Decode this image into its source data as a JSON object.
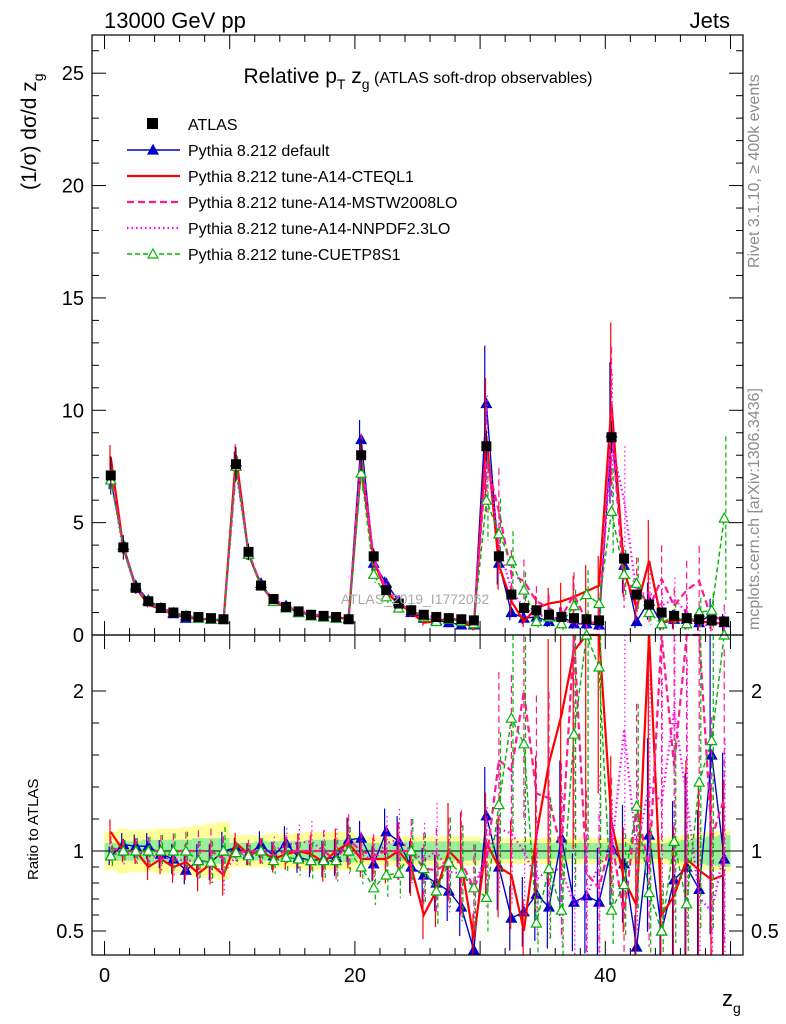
{
  "header": {
    "left": "13000 GeV pp",
    "right": "Jets"
  },
  "side_labels": {
    "rivet": "Rivet 3.1.10, ≥ 400k events",
    "mcplots": "mcplots.cern.ch [arXiv:1306.3436]"
  },
  "watermark": "ATLAS_2019_I1772062",
  "chart_data": {
    "type": "scatter",
    "title_main": "Relative p",
    "title_sub_T": "T",
    "title_z": " z",
    "title_sub_g": "g",
    "title_rest": " (ATLAS soft-drop observables)",
    "ylabel_main": "(1/σ) dσ/d z",
    "ylabel_sub": "g",
    "ratio_ylabel": "Ratio to ATLAS",
    "xlabel": "z",
    "xlabel_sub": "g",
    "xlim": [
      -1,
      51
    ],
    "ylim": [
      0,
      26.7
    ],
    "ratio_ylim": [
      0.35,
      2.35
    ],
    "x_ticks": [
      "0",
      "20",
      "40"
    ],
    "y_ticks": [
      "0",
      "5",
      "10",
      "15",
      "20",
      "25"
    ],
    "ratio_ticks": [
      "0.5",
      "1",
      "2"
    ],
    "x": [
      0.5,
      1.5,
      2.5,
      3.5,
      4.5,
      5.5,
      6.5,
      7.5,
      8.5,
      9.5,
      10.5,
      11.5,
      12.5,
      13.5,
      14.5,
      15.5,
      16.5,
      17.5,
      18.5,
      19.5,
      20.5,
      21.5,
      22.5,
      23.5,
      24.5,
      25.5,
      26.5,
      27.5,
      28.5,
      29.5,
      30.5,
      31.5,
      32.5,
      33.5,
      34.5,
      35.5,
      36.5,
      37.5,
      38.5,
      39.5,
      40.5,
      41.5,
      42.5,
      43.5,
      44.5,
      45.5,
      46.5,
      47.5,
      48.5,
      49.5
    ],
    "atlas": {
      "name": "ATLAS",
      "color": "#000000",
      "values": [
        7.1,
        3.9,
        2.1,
        1.5,
        1.2,
        1.0,
        0.85,
        0.8,
        0.75,
        0.7,
        7.6,
        3.7,
        2.2,
        1.6,
        1.25,
        1.05,
        0.9,
        0.85,
        0.8,
        0.7,
        8.0,
        3.5,
        2.0,
        1.4,
        1.1,
        0.9,
        0.8,
        0.75,
        0.7,
        0.65,
        8.4,
        3.5,
        1.8,
        1.2,
        1.1,
        0.9,
        0.8,
        0.75,
        0.7,
        0.65,
        8.8,
        3.4,
        1.8,
        1.35,
        1.0,
        0.85,
        0.75,
        0.7,
        0.65,
        0.6
      ],
      "band_inner": [
        0.05,
        0.06,
        0.06,
        0.07,
        0.07,
        0.07,
        0.07,
        0.08,
        0.08,
        0.08,
        0.05,
        0.05,
        0.06,
        0.06,
        0.06,
        0.06,
        0.07,
        0.07,
        0.07,
        0.07,
        0.05,
        0.05,
        0.05,
        0.06,
        0.06,
        0.06,
        0.06,
        0.06,
        0.06,
        0.06,
        0.05,
        0.05,
        0.05,
        0.05,
        0.05,
        0.05,
        0.05,
        0.05,
        0.05,
        0.05,
        0.05,
        0.05,
        0.05,
        0.05,
        0.05,
        0.06,
        0.07,
        0.08,
        0.09,
        0.1
      ],
      "band_outer": [
        0.12,
        0.14,
        0.13,
        0.13,
        0.14,
        0.14,
        0.15,
        0.16,
        0.17,
        0.18,
        0.1,
        0.1,
        0.1,
        0.11,
        0.11,
        0.11,
        0.12,
        0.12,
        0.12,
        0.12,
        0.09,
        0.09,
        0.09,
        0.09,
        0.09,
        0.09,
        0.09,
        0.09,
        0.09,
        0.09,
        0.08,
        0.08,
        0.08,
        0.08,
        0.08,
        0.08,
        0.08,
        0.08,
        0.08,
        0.08,
        0.08,
        0.08,
        0.08,
        0.08,
        0.08,
        0.09,
        0.1,
        0.11,
        0.12,
        0.13
      ]
    },
    "series": [
      {
        "name": "Pythia 8.212 default",
        "color": "#0000cc",
        "dash": "",
        "marker": "triangle-filled",
        "values": [
          6.9,
          4.0,
          2.2,
          1.55,
          1.2,
          0.95,
          0.75,
          0.75,
          0.7,
          0.7,
          7.7,
          3.6,
          2.3,
          1.5,
          1.3,
          1.0,
          0.85,
          0.8,
          0.75,
          0.75,
          8.7,
          3.2,
          2.3,
          1.5,
          1.0,
          0.75,
          0.65,
          0.55,
          0.45,
          0.45,
          10.3,
          3.2,
          1.0,
          0.75,
          0.8,
          0.6,
          0.85,
          0.5,
          0.5,
          0.45,
          9.0,
          3.1,
          0.6,
          1.5,
          0.5,
          0.7,
          0.7,
          0.55,
          0.95,
          0.55
        ],
        "ratio": [
          0.97,
          1.04,
          1.03,
          1.03,
          0.98,
          0.95,
          0.88,
          0.94,
          0.93,
          1.0,
          1.02,
          0.98,
          1.04,
          0.97,
          1.05,
          0.96,
          0.94,
          0.95,
          0.96,
          1.07,
          1.08,
          0.92,
          1.12,
          1.06,
          0.9,
          0.85,
          0.8,
          0.75,
          0.65,
          0.38,
          1.22,
          0.9,
          0.58,
          0.62,
          0.73,
          0.65,
          1.08,
          0.68,
          0.72,
          0.68,
          1.02,
          0.92,
          0.4,
          1.1,
          0.5,
          0.82,
          0.9,
          0.76,
          1.6,
          0.95
        ],
        "err": [
          0.06,
          0.07,
          0.07,
          0.08,
          0.09,
          0.1,
          0.1,
          0.11,
          0.12,
          0.12,
          0.06,
          0.07,
          0.08,
          0.09,
          0.1,
          0.1,
          0.11,
          0.12,
          0.12,
          0.13,
          0.1,
          0.12,
          0.13,
          0.15,
          0.18,
          0.2,
          0.22,
          0.25,
          0.28,
          0.3,
          0.25,
          0.3,
          0.35,
          0.35,
          0.4,
          0.4,
          0.45,
          0.45,
          0.5,
          0.5,
          0.35,
          0.4,
          0.5,
          0.55,
          0.6,
          0.6,
          0.65,
          0.65,
          0.7,
          0.7
        ]
      },
      {
        "name": "Pythia 8.212 tune-A14-CTEQL1",
        "color": "#ff0000",
        "dash": "",
        "marker": "none",
        "values": [
          7.9,
          3.9,
          2.1,
          1.35,
          1.15,
          0.9,
          0.8,
          0.7,
          0.7,
          0.6,
          8.0,
          3.6,
          2.2,
          1.5,
          1.2,
          1.05,
          0.9,
          0.8,
          0.8,
          0.7,
          7.6,
          3.3,
          1.9,
          1.4,
          1.0,
          0.55,
          0.6,
          0.75,
          0.65,
          0.3,
          8.8,
          3.1,
          1.5,
          0.6,
          1.2,
          1.4,
          1.5,
          1.7,
          1.95,
          2.2,
          10.3,
          2.8,
          1.2,
          3.3,
          0.6,
          0.6,
          0.7,
          0.6,
          0.55,
          0.5
        ],
        "ratio": [
          1.12,
          1.0,
          1.0,
          0.9,
          0.95,
          0.9,
          0.93,
          0.86,
          0.92,
          0.85,
          1.05,
          0.98,
          1.0,
          0.95,
          0.98,
          1.0,
          0.98,
          0.93,
          1.0,
          1.05,
          0.95,
          0.95,
          0.95,
          1.0,
          0.9,
          0.6,
          0.75,
          1.0,
          0.92,
          0.45,
          1.05,
          0.9,
          0.85,
          0.5,
          1.1,
          1.55,
          1.85,
          2.25,
          2.8,
          3.4,
          1.18,
          0.82,
          0.66,
          2.45,
          0.6,
          0.72,
          0.95,
          0.88,
          0.82,
          0.85
        ],
        "err": [
          0.07,
          0.07,
          0.08,
          0.09,
          0.1,
          0.11,
          0.12,
          0.13,
          0.14,
          0.15,
          0.06,
          0.07,
          0.08,
          0.09,
          0.1,
          0.11,
          0.12,
          0.13,
          0.14,
          0.15,
          0.12,
          0.14,
          0.16,
          0.18,
          0.2,
          0.25,
          0.3,
          0.3,
          0.35,
          0.35,
          0.3,
          0.35,
          0.4,
          0.4,
          0.45,
          0.5,
          0.55,
          0.55,
          0.6,
          0.6,
          0.35,
          0.4,
          0.5,
          0.55,
          0.6,
          0.6,
          0.65,
          0.65,
          0.7,
          0.7
        ]
      },
      {
        "name": "Pythia 8.212 tune-A14-MSTW2008LO",
        "color": "#ff1a8c",
        "dash": "7,4",
        "marker": "none",
        "values": [
          7.2,
          3.9,
          2.1,
          1.5,
          1.2,
          1.0,
          0.85,
          0.8,
          0.75,
          0.65,
          7.5,
          3.7,
          2.2,
          1.55,
          1.25,
          1.05,
          0.9,
          0.85,
          0.75,
          0.75,
          8.0,
          3.4,
          2.0,
          1.4,
          1.1,
          0.8,
          0.7,
          0.7,
          0.65,
          0.5,
          7.8,
          5.5,
          2.7,
          2.4,
          1.5,
          1.2,
          0.8,
          1.8,
          0.6,
          0.5,
          9.5,
          2.0,
          2.3,
          1.2,
          2.5,
          1.3,
          2.0,
          2.4,
          0.7,
          0.8
        ],
        "ratio": [
          1.02,
          1.0,
          1.0,
          1.0,
          1.0,
          1.0,
          1.0,
          1.0,
          1.0,
          0.95,
          0.99,
          1.0,
          1.0,
          0.97,
          1.0,
          1.0,
          1.0,
          1.0,
          0.94,
          1.07,
          1.0,
          0.97,
          1.0,
          1.0,
          1.0,
          0.89,
          0.88,
          0.93,
          0.93,
          0.77,
          0.93,
          1.57,
          1.5,
          2.0,
          1.36,
          1.33,
          1.0,
          2.4,
          0.86,
          0.77,
          1.08,
          0.59,
          1.28,
          0.89,
          2.5,
          1.53,
          2.67,
          3.4,
          1.08,
          1.33
        ],
        "err": [
          0.07,
          0.07,
          0.08,
          0.09,
          0.1,
          0.11,
          0.12,
          0.13,
          0.14,
          0.15,
          0.06,
          0.07,
          0.08,
          0.09,
          0.1,
          0.11,
          0.12,
          0.13,
          0.14,
          0.15,
          0.12,
          0.14,
          0.16,
          0.18,
          0.2,
          0.25,
          0.3,
          0.3,
          0.35,
          0.35,
          0.3,
          0.35,
          0.4,
          0.4,
          0.45,
          0.5,
          0.55,
          0.55,
          0.6,
          0.6,
          0.35,
          0.4,
          0.5,
          0.55,
          0.6,
          0.6,
          0.65,
          0.65,
          0.7,
          0.7
        ]
      },
      {
        "name": "Pythia 8.212 tune-A14-NNPDF2.3LO",
        "color": "#ff00ff",
        "dash": "1.5,3",
        "marker": "none",
        "values": [
          7.0,
          3.8,
          2.1,
          1.45,
          1.15,
          0.95,
          0.8,
          0.75,
          0.7,
          0.6,
          7.4,
          3.6,
          2.2,
          1.6,
          1.3,
          1.1,
          0.95,
          0.85,
          0.8,
          0.7,
          7.8,
          3.3,
          2.1,
          1.5,
          1.1,
          0.85,
          0.8,
          0.65,
          0.6,
          0.5,
          8.2,
          4.0,
          2.0,
          1.2,
          0.9,
          0.8,
          0.7,
          0.5,
          0.5,
          0.6,
          8.6,
          6.0,
          1.8,
          1.9,
          1.3,
          1.6,
          1.0,
          0.5,
          0.4,
          0.6
        ],
        "ratio": [
          0.99,
          0.97,
          1.0,
          0.97,
          0.96,
          0.95,
          0.94,
          0.94,
          0.93,
          0.86,
          0.97,
          0.97,
          1.0,
          1.0,
          1.04,
          1.05,
          1.06,
          1.0,
          1.0,
          1.0,
          0.98,
          0.94,
          1.05,
          1.07,
          1.0,
          0.94,
          1.0,
          0.87,
          0.86,
          0.77,
          0.98,
          1.14,
          1.11,
          1.0,
          0.82,
          0.89,
          0.88,
          0.67,
          0.71,
          0.92,
          0.98,
          1.76,
          1.0,
          1.41,
          1.3,
          1.88,
          1.33,
          0.71,
          0.62,
          1.0
        ],
        "err": [
          0.07,
          0.07,
          0.08,
          0.09,
          0.1,
          0.11,
          0.12,
          0.13,
          0.14,
          0.15,
          0.06,
          0.07,
          0.08,
          0.09,
          0.1,
          0.11,
          0.12,
          0.13,
          0.14,
          0.15,
          0.12,
          0.14,
          0.16,
          0.18,
          0.2,
          0.25,
          0.3,
          0.3,
          0.35,
          0.35,
          0.3,
          0.35,
          0.4,
          0.4,
          0.45,
          0.5,
          0.55,
          0.55,
          0.6,
          0.6,
          0.35,
          0.4,
          0.5,
          0.55,
          0.6,
          0.6,
          0.65,
          0.65,
          0.7,
          0.7
        ]
      },
      {
        "name": "Pythia 8.212 tune-CUETP8S1",
        "color": "#00b400",
        "dash": "5,3",
        "marker": "triangle-open",
        "values": [
          6.9,
          3.9,
          2.1,
          1.5,
          1.2,
          1.0,
          0.85,
          0.75,
          0.7,
          0.7,
          7.5,
          3.6,
          2.2,
          1.5,
          1.2,
          1.0,
          0.85,
          0.8,
          0.75,
          0.7,
          7.2,
          2.7,
          1.7,
          1.2,
          1.1,
          0.8,
          0.6,
          0.7,
          0.6,
          0.5,
          6.0,
          4.5,
          3.3,
          2.0,
          0.6,
          0.8,
          0.5,
          1.3,
          1.8,
          1.4,
          5.5,
          2.7,
          2.3,
          1.0,
          0.5,
          0.9,
          0.5,
          1.0,
          1.1,
          5.2
        ],
        "ratio": [
          0.97,
          1.0,
          1.0,
          1.0,
          1.0,
          1.0,
          1.0,
          0.94,
          0.93,
          1.0,
          0.99,
          0.97,
          1.0,
          0.94,
          0.96,
          0.95,
          0.94,
          0.94,
          0.94,
          1.0,
          0.9,
          0.77,
          0.85,
          0.86,
          1.0,
          0.89,
          0.75,
          0.93,
          0.86,
          0.77,
          0.71,
          1.29,
          1.83,
          1.67,
          0.55,
          0.89,
          0.63,
          1.73,
          2.57,
          2.15,
          0.63,
          0.79,
          1.28,
          0.74,
          0.5,
          1.06,
          0.67,
          1.43,
          1.69,
          8.67
        ],
        "err": [
          0.07,
          0.07,
          0.08,
          0.09,
          0.1,
          0.11,
          0.12,
          0.13,
          0.14,
          0.15,
          0.06,
          0.07,
          0.08,
          0.09,
          0.1,
          0.11,
          0.12,
          0.13,
          0.14,
          0.15,
          0.12,
          0.14,
          0.16,
          0.18,
          0.2,
          0.25,
          0.3,
          0.3,
          0.35,
          0.35,
          0.3,
          0.35,
          0.4,
          0.4,
          0.45,
          0.5,
          0.55,
          0.55,
          0.6,
          0.6,
          0.35,
          0.4,
          0.5,
          0.55,
          0.6,
          0.6,
          0.65,
          0.65,
          0.7,
          0.7
        ]
      }
    ]
  }
}
